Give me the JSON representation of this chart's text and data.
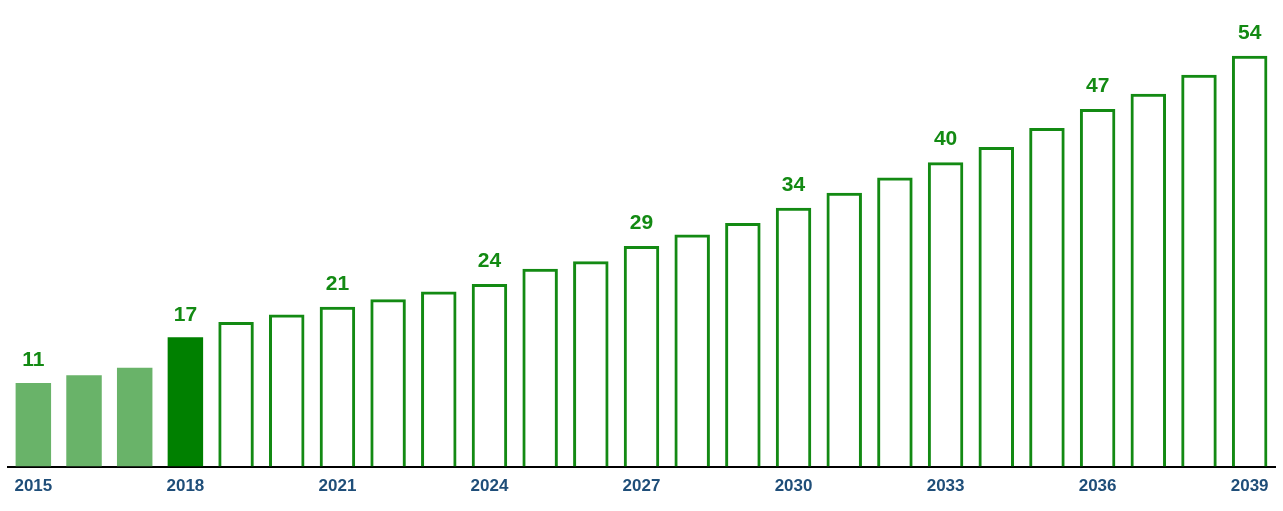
{
  "chart_data": {
    "type": "bar",
    "categories": [
      "2015",
      null,
      null,
      "2018",
      null,
      null,
      "2021",
      null,
      null,
      "2024",
      null,
      null,
      "2027",
      null,
      null,
      "2030",
      null,
      null,
      "2033",
      null,
      null,
      "2036",
      null,
      null,
      "2039"
    ],
    "series": [
      {
        "colors": [
          "#69b369",
          "#69b369",
          "#69b369",
          "#008000",
          null,
          null,
          null,
          null,
          null,
          null,
          null,
          null,
          null,
          null,
          null,
          null,
          null,
          null,
          null,
          null,
          null,
          null,
          null,
          null,
          null
        ],
        "values": [
          11,
          12,
          13,
          17,
          null,
          null,
          null,
          null,
          null,
          null,
          null,
          null,
          null,
          null,
          null,
          null,
          null,
          null,
          null,
          null,
          null,
          null,
          null,
          null,
          null
        ],
        "value_labels": [
          "11",
          null,
          null,
          "17",
          null,
          null,
          null,
          null,
          null,
          null,
          null,
          null,
          null,
          null,
          null,
          null,
          null,
          null,
          null,
          null,
          null,
          null,
          null,
          null,
          null
        ]
      },
      {
        "color": "#138a13",
        "values": [
          null,
          null,
          null,
          null,
          19,
          20,
          21,
          22,
          23,
          24,
          26,
          27,
          29,
          30.5,
          32,
          34,
          36,
          38,
          40,
          42,
          44.5,
          47,
          49,
          51.5,
          54
        ],
        "value_labels": [
          null,
          null,
          null,
          null,
          null,
          null,
          "21",
          null,
          null,
          "24",
          null,
          null,
          "29",
          null,
          null,
          "34",
          null,
          null,
          "40",
          null,
          null,
          "47",
          null,
          null,
          "54"
        ]
      }
    ],
    "grid": false,
    "legend": false,
    "tick_labels": "x"
  }
}
